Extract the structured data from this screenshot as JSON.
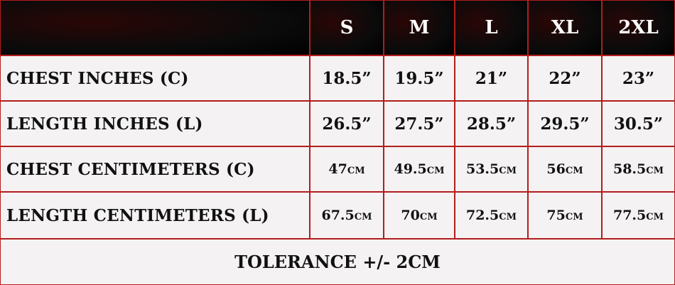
{
  "table": {
    "header": [
      "S",
      "M",
      "L",
      "XL",
      "2XL"
    ],
    "rows": [
      {
        "label": "CHEST INCHES (C)",
        "cells": [
          "18.5”",
          "19.5”",
          "21”",
          "22”",
          "23”"
        ]
      },
      {
        "label": "LENGTH INCHES (L)",
        "cells": [
          "26.5”",
          "27.5”",
          "28.5”",
          "29.5”",
          "30.5”"
        ]
      },
      {
        "label": "CHEST CENTIMETERS (C)",
        "cells": [
          "47cm",
          "49.5cm",
          "53.5cm",
          "56cm",
          "58.5cm"
        ]
      },
      {
        "label": "LENGTH CENTIMETERS (L)",
        "cells": [
          "67.5cm",
          "70cm",
          "72.5cm",
          "75cm",
          "77.5cm"
        ]
      }
    ],
    "footer": "TOLERANCE +/- 2CM"
  }
}
